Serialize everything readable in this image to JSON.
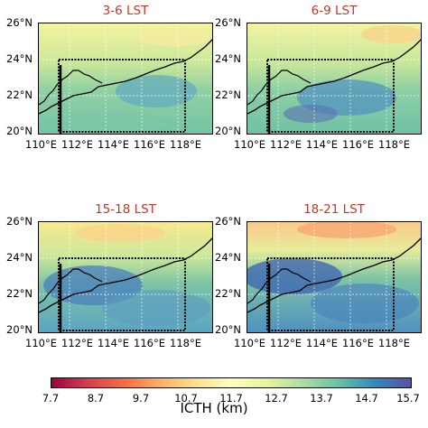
{
  "panels": [
    {
      "title": "3-6 LST"
    },
    {
      "title": "6-9 LST"
    },
    {
      "title": "15-18 LST"
    },
    {
      "title": "18-21 LST"
    }
  ],
  "lat_ticks": [
    "26°N",
    "24°N",
    "22°N",
    "20°N"
  ],
  "lon_ticks": [
    "110°E",
    "112°E",
    "114°E",
    "116°E",
    "118°E"
  ],
  "colorbar": {
    "label": "ICTH (km)",
    "ticks": [
      "7.7",
      "8.7",
      "9.7",
      "10.7",
      "11.7",
      "12.7",
      "13.7",
      "14.7",
      "15.7"
    ],
    "colors": [
      "#9e0142",
      "#d53e4f",
      "#f46d43",
      "#fdae61",
      "#fee08b",
      "#ffffbf",
      "#e6f598",
      "#abdda4",
      "#66c2a5",
      "#3288bd",
      "#5e4fa2"
    ],
    "range": [
      7.7,
      15.7
    ]
  }
}
